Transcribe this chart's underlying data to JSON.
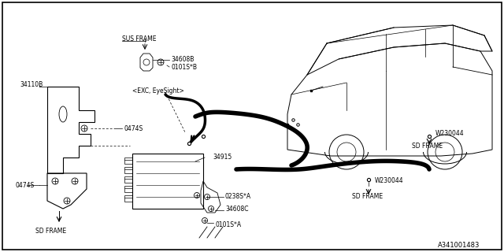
{
  "bg_color": "#ffffff",
  "border_color": "#000000",
  "line_color": "#000000",
  "fig_width": 6.4,
  "fig_height": 3.2,
  "dpi": 100,
  "diagram_ref": "A341001483",
  "labels": {
    "sus_frame": "SUS FRAME",
    "exc_eyesight": "<EXC, EyeSight>",
    "part_34608B": "34608B",
    "part_0101SB": "0101S*B",
    "part_34110B": "34110B",
    "part_0474S_top": "0474S",
    "part_0474S_bot": "0474S",
    "part_34915": "34915",
    "part_0238SA": "0238S*A",
    "part_34608C": "34608C",
    "part_0101SA": "0101S*A",
    "part_W230044_top": "W230044",
    "part_W230044_bot": "W230044",
    "sd_frame_right_top": "SD FRAME",
    "sd_frame_right_bot": "SD FRAME",
    "sd_frame_left": "SD FRAME"
  }
}
